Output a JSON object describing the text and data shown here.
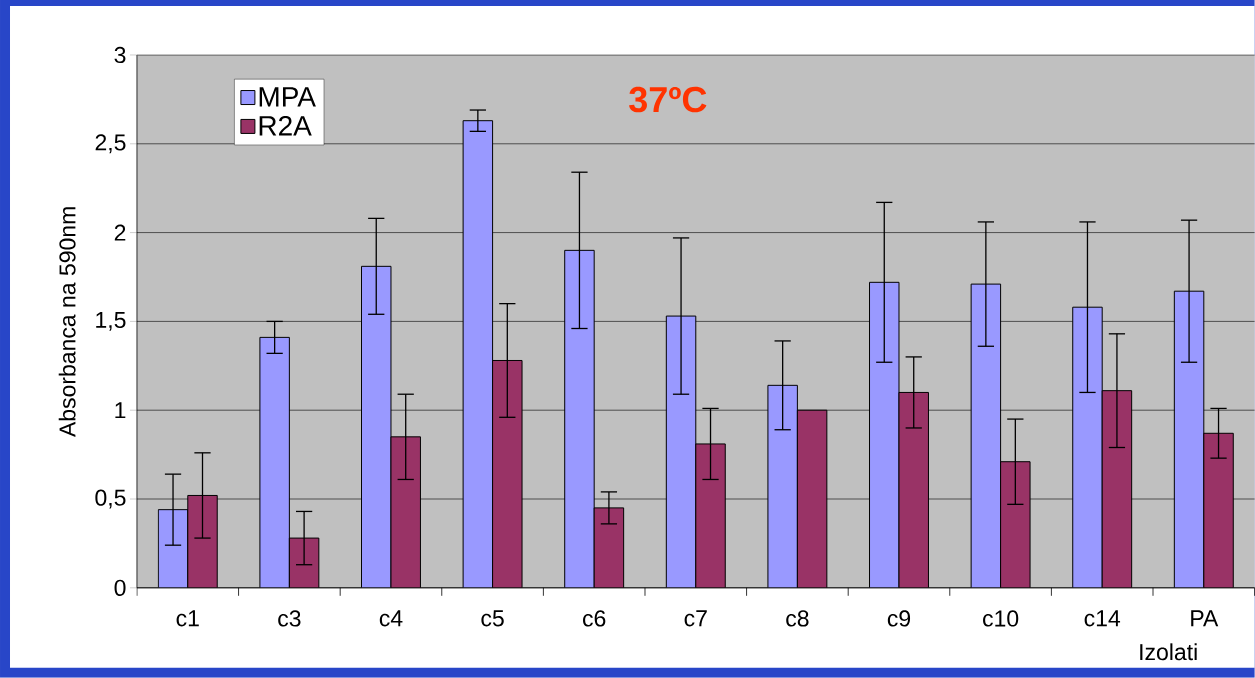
{
  "chart_data": {
    "type": "bar",
    "title": "37ºC",
    "xlabel": "Izolati",
    "ylabel": "Absorbanca na 590nm",
    "categories": [
      "c1",
      "c3",
      "c4",
      "c5",
      "c6",
      "c7",
      "c8",
      "c9",
      "c10",
      "c14",
      "PA"
    ],
    "series": [
      {
        "name": "MPA",
        "color": "#9999ff",
        "values": [
          0.44,
          1.41,
          1.81,
          2.63,
          1.9,
          1.53,
          1.14,
          1.72,
          1.71,
          1.58,
          1.67
        ],
        "errors": [
          0.2,
          0.09,
          0.27,
          0.06,
          0.44,
          0.44,
          0.25,
          0.45,
          0.35,
          0.48,
          0.4
        ]
      },
      {
        "name": "R2A",
        "color": "#993366",
        "values": [
          0.52,
          0.28,
          0.85,
          1.28,
          0.45,
          0.81,
          1.0,
          1.1,
          0.71,
          1.11,
          0.87
        ],
        "errors": [
          0.24,
          0.15,
          0.24,
          0.32,
          0.09,
          0.2,
          null,
          0.2,
          0.24,
          0.32,
          0.14
        ]
      }
    ],
    "ylim": [
      0,
      3
    ],
    "yticks": [
      0,
      {
        "value": 0.5,
        "label": "0,5"
      },
      1,
      {
        "value": 1.5,
        "label": "1,5"
      },
      2,
      {
        "value": 2.5,
        "label": "2,5"
      },
      3
    ],
    "grid": "y",
    "legend": "top left"
  }
}
